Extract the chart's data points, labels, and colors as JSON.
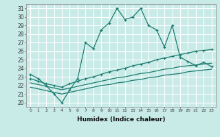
{
  "title": "",
  "xlabel": "Humidex (Indice chaleur)",
  "bg_color": "#c8ebe8",
  "grid_color": "#ffffff",
  "line_color": "#1a7a6e",
  "xlim": [
    -0.5,
    23.5
  ],
  "ylim": [
    19.5,
    31.5
  ],
  "xticks": [
    0,
    1,
    2,
    3,
    4,
    5,
    6,
    7,
    8,
    9,
    10,
    11,
    12,
    13,
    14,
    15,
    16,
    17,
    18,
    19,
    20,
    21,
    22,
    23
  ],
  "yticks": [
    20,
    21,
    22,
    23,
    24,
    25,
    26,
    27,
    28,
    29,
    30,
    31
  ],
  "series1_x": [
    0,
    1,
    2,
    3,
    4,
    5,
    6,
    7,
    8,
    9,
    10,
    11,
    12,
    13,
    14,
    15,
    16,
    17,
    18,
    19,
    20,
    21,
    22,
    23
  ],
  "series1_y": [
    23.3,
    22.8,
    22.0,
    21.0,
    20.0,
    21.5,
    22.8,
    27.0,
    26.3,
    28.5,
    29.3,
    31.0,
    29.7,
    30.0,
    31.0,
    29.0,
    28.5,
    26.5,
    29.0,
    25.3,
    24.8,
    24.3,
    24.7,
    24.2
  ],
  "series2_x": [
    0,
    1,
    2,
    3,
    4,
    5,
    6,
    7,
    8,
    9,
    10,
    11,
    12,
    13,
    14,
    15,
    16,
    17,
    18,
    19,
    20,
    21,
    22,
    23
  ],
  "series2_y": [
    22.8,
    22.5,
    22.2,
    22.0,
    21.8,
    22.2,
    22.5,
    22.8,
    23.0,
    23.3,
    23.6,
    23.8,
    24.0,
    24.3,
    24.5,
    24.7,
    25.0,
    25.2,
    25.4,
    25.6,
    25.8,
    26.0,
    26.1,
    26.2
  ],
  "series3_x": [
    0,
    1,
    2,
    3,
    4,
    5,
    6,
    7,
    8,
    9,
    10,
    11,
    12,
    13,
    14,
    15,
    16,
    17,
    18,
    19,
    20,
    21,
    22,
    23
  ],
  "series3_y": [
    22.3,
    22.1,
    21.9,
    21.7,
    21.5,
    21.7,
    21.9,
    22.1,
    22.3,
    22.5,
    22.7,
    22.9,
    23.0,
    23.2,
    23.4,
    23.5,
    23.7,
    23.9,
    24.0,
    24.2,
    24.3,
    24.4,
    24.5,
    24.6
  ],
  "series4_x": [
    0,
    1,
    2,
    3,
    4,
    5,
    6,
    7,
    8,
    9,
    10,
    11,
    12,
    13,
    14,
    15,
    16,
    17,
    18,
    19,
    20,
    21,
    22,
    23
  ],
  "series4_y": [
    21.8,
    21.6,
    21.4,
    21.2,
    21.0,
    21.2,
    21.4,
    21.6,
    21.8,
    22.0,
    22.1,
    22.3,
    22.4,
    22.6,
    22.7,
    22.9,
    23.0,
    23.2,
    23.3,
    23.4,
    23.6,
    23.7,
    23.8,
    23.9
  ]
}
